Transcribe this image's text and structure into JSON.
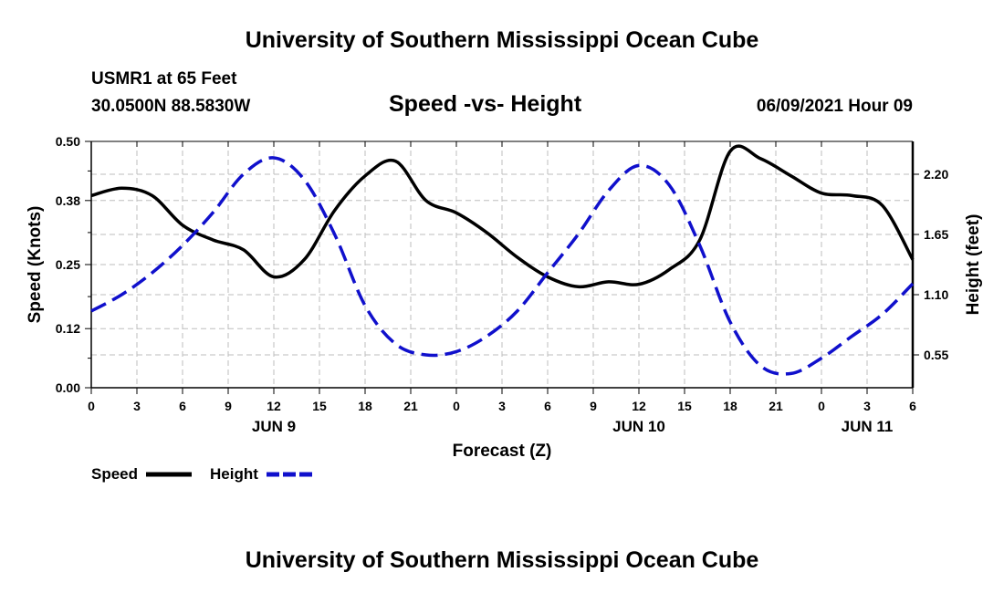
{
  "page": {
    "top_title": "University of Southern Mississippi Ocean Cube",
    "bottom_title": "University of Southern Mississippi Ocean Cube",
    "station": "USMR1 at 65 Feet",
    "coords": "30.0500N  88.5830W",
    "chart_title": "Speed -vs- Height",
    "datetime": "06/09/2021 Hour 09"
  },
  "chart_data": {
    "type": "line",
    "title": "Speed -vs- Height",
    "xlabel": "Forecast (Z)",
    "ylabel": "Speed (Knots)",
    "y2label": "Height (feet)",
    "x": [
      0,
      2,
      4,
      6,
      8,
      10,
      12,
      14,
      16,
      18,
      20,
      22,
      24,
      26,
      28,
      30,
      32,
      34,
      36,
      38,
      40,
      42,
      44,
      46,
      48,
      50,
      52,
      54
    ],
    "x_ticks": [
      0,
      3,
      6,
      9,
      12,
      15,
      18,
      21,
      24,
      27,
      30,
      33,
      36,
      39,
      42,
      45,
      48,
      51,
      54
    ],
    "x_tick_labels": [
      "0",
      "3",
      "6",
      "9",
      "12",
      "15",
      "18",
      "21",
      "0",
      "3",
      "6",
      "9",
      "12",
      "15",
      "18",
      "21",
      "0",
      "3",
      "6"
    ],
    "day_labels": [
      {
        "at": 12,
        "text": "JUN 9"
      },
      {
        "at": 36,
        "text": "JUN 10"
      },
      {
        "at": 51,
        "text": "JUN 11"
      }
    ],
    "xlim": [
      0,
      54
    ],
    "ylim": [
      0,
      0.5
    ],
    "yticks": [
      0.0,
      0.12,
      0.25,
      0.38,
      0.5
    ],
    "ytick_labels": [
      "0.00",
      "0.12",
      "0.25",
      "0.38",
      "0.50"
    ],
    "y2lim": [
      0.25,
      2.5
    ],
    "y2ticks": [
      0.55,
      1.1,
      1.65,
      2.2
    ],
    "y2tick_labels": [
      "0.55",
      "1.10",
      "1.65",
      "2.20"
    ],
    "grid": true,
    "series": [
      {
        "name": "Speed",
        "axis": "left",
        "color": "#000000",
        "dash": "solid",
        "values": [
          0.39,
          0.405,
          0.39,
          0.33,
          0.3,
          0.28,
          0.225,
          0.26,
          0.36,
          0.43,
          0.46,
          0.38,
          0.355,
          0.315,
          0.265,
          0.225,
          0.205,
          0.215,
          0.21,
          0.24,
          0.3,
          0.48,
          0.465,
          0.43,
          0.395,
          0.39,
          0.37,
          0.26
        ]
      },
      {
        "name": "Height",
        "axis": "right",
        "color": "#1010cc",
        "dash": "dashed",
        "values": [
          0.95,
          1.1,
          1.3,
          1.55,
          1.85,
          2.2,
          2.35,
          2.15,
          1.65,
          1.0,
          0.65,
          0.55,
          0.58,
          0.72,
          0.95,
          1.3,
          1.65,
          2.05,
          2.28,
          2.1,
          1.55,
          0.85,
          0.45,
          0.38,
          0.52,
          0.72,
          0.92,
          1.2
        ]
      }
    ],
    "legend": [
      {
        "name": "Speed",
        "color": "#000000",
        "dash": "solid"
      },
      {
        "name": "Height",
        "color": "#1010cc",
        "dash": "dashed"
      }
    ]
  }
}
